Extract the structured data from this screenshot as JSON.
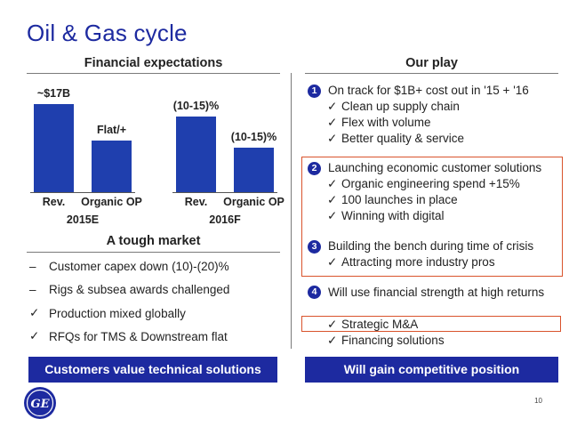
{
  "title": "Oil & Gas cycle",
  "financial": {
    "heading": "Financial expectations",
    "chart_data": {
      "type": "bar",
      "groups": [
        {
          "year": "2015E",
          "bars": [
            {
              "category": "Rev.",
              "label": "~$17B",
              "value": 17
            },
            {
              "category": "Organic OP",
              "label": "Flat/+",
              "value": 10
            }
          ]
        },
        {
          "year": "2016F",
          "bars": [
            {
              "category": "Rev.",
              "label": "(10-15)%",
              "value": 14.7
            },
            {
              "category": "Organic OP",
              "label": "(10-15)%",
              "value": 8.6
            }
          ]
        }
      ]
    }
  },
  "market": {
    "heading": "A tough market",
    "items": [
      {
        "marker": "–",
        "text": "Customer capex down (10)-(20)%"
      },
      {
        "marker": "–",
        "text": "Rigs & subsea awards challenged"
      },
      {
        "marker": "✓",
        "text": "Production mixed globally"
      },
      {
        "marker": "✓",
        "text": "RFQs for TMS & Downstream flat"
      }
    ],
    "banner": "Customers value technical solutions"
  },
  "play": {
    "heading": "Our play",
    "items": [
      {
        "num": "1",
        "text": "On track for $1B+ cost out in '15 + '16",
        "subs": [
          "Clean up supply chain",
          "Flex with volume",
          "Better quality & service"
        ]
      },
      {
        "num": "2",
        "text": "Launching economic customer solutions",
        "subs": [
          "Organic engineering spend +15%",
          "100 launches in place",
          "Winning with digital"
        ]
      },
      {
        "num": "3",
        "text": "Building the bench during time of crisis",
        "subs": [
          "Attracting more industry pros"
        ]
      },
      {
        "num": "4",
        "text": "Will use financial strength at high returns",
        "subs": [
          "Strategic M&A",
          "Financing solutions"
        ]
      }
    ],
    "check": "✓",
    "banner": "Will gain competitive position"
  },
  "logo": {
    "text": "GE"
  },
  "page_number": "10",
  "colors": {
    "brand_blue": "#1d2aa0",
    "bar_blue": "#1f3fae",
    "highlight_orange": "#d9532c"
  }
}
